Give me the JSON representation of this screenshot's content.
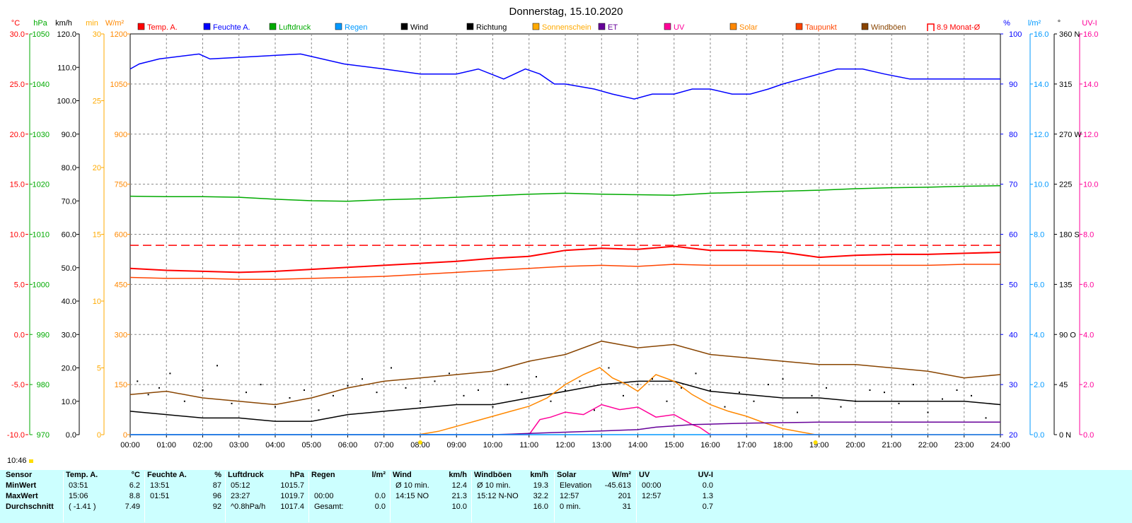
{
  "title": "Donnerstag, 15.10.2020",
  "current_time": "10:46",
  "legend": [
    {
      "label": "Temp. A.",
      "color": "#ff0000",
      "type": "box"
    },
    {
      "label": "Feuchte A.",
      "color": "#0000ff",
      "type": "box"
    },
    {
      "label": "Luftdruck",
      "color": "#00aa00",
      "type": "box"
    },
    {
      "label": "Regen",
      "color": "#0099ff",
      "type": "box"
    },
    {
      "label": "Wind",
      "color": "#000000",
      "type": "box"
    },
    {
      "label": "Richtung",
      "color": "#000000",
      "type": "box"
    },
    {
      "label": "Sonnenschein",
      "color": "#ffaa00",
      "type": "box"
    },
    {
      "label": "ET",
      "color": "#660099",
      "type": "box"
    },
    {
      "label": "UV",
      "color": "#ff0099",
      "type": "box"
    },
    {
      "label": "Solar",
      "color": "#ff8800",
      "type": "box"
    },
    {
      "label": "Taupunkt",
      "color": "#ff4400",
      "type": "box"
    },
    {
      "label": "Windböen",
      "color": "#884400",
      "type": "box"
    },
    {
      "label": "8.9 Monat-Ø",
      "color": "#ff0000",
      "type": "open"
    }
  ],
  "axes": {
    "temp": {
      "unit": "°C",
      "color": "#ff0000",
      "ticks": [
        "30.0",
        "25.0",
        "20.0",
        "15.0",
        "10.0",
        "5.0",
        "0.0",
        "-5.0",
        "-10.0"
      ]
    },
    "pressure": {
      "unit": "hPa",
      "color": "#00aa00",
      "ticks": [
        "1050",
        "1040",
        "1030",
        "1020",
        "1010",
        "1000",
        "990",
        "980",
        "970"
      ]
    },
    "wind": {
      "unit": "km/h",
      "color": "#000000",
      "ticks": [
        "120.0",
        "110.0",
        "100.0",
        "90.0",
        "80.0",
        "70.0",
        "60.0",
        "50.0",
        "40.0",
        "30.0",
        "20.0",
        "10.0",
        "0.0"
      ]
    },
    "minutes": {
      "unit": "min",
      "color": "#ffaa00",
      "ticks": [
        "30",
        "25",
        "20",
        "15",
        "10",
        "5",
        "0"
      ]
    },
    "solar": {
      "unit": "W/m²",
      "color": "#ff8800",
      "ticks": [
        "1200",
        "1050",
        "900",
        "750",
        "600",
        "450",
        "300",
        "150",
        "0"
      ]
    },
    "humidity": {
      "unit": "%",
      "color": "#0000ff",
      "ticks": [
        "100",
        "90",
        "80",
        "70",
        "60",
        "50",
        "40",
        "30",
        "20"
      ]
    },
    "rain": {
      "unit": "l/m²",
      "color": "#0099ff",
      "ticks": [
        "16.0",
        "14.0",
        "12.0",
        "10.0",
        "8.0",
        "6.0",
        "4.0",
        "2.0",
        "0.0"
      ]
    },
    "direction": {
      "unit": "°",
      "color": "#000000",
      "ticks": [
        "360 N",
        "315",
        "270 W",
        "225",
        "180 S",
        "135",
        "90 O",
        "45",
        "0 N"
      ]
    },
    "uv": {
      "unit": "UV-I",
      "color": "#ff0099",
      "ticks": [
        "16.0",
        "14.0",
        "12.0",
        "10.0",
        "8.0",
        "6.0",
        "4.0",
        "2.0",
        "0.0"
      ]
    },
    "x_ticks": [
      "00:00",
      "01:00",
      "02:00",
      "03:00",
      "04:00",
      "05:00",
      "06:00",
      "07:00",
      "08:00",
      "09:00",
      "10:00",
      "11:00",
      "12:00",
      "13:00",
      "14:00",
      "15:00",
      "16:00",
      "17:00",
      "18:00",
      "19:00",
      "20:00",
      "21:00",
      "22:00",
      "23:00",
      "24:00"
    ]
  },
  "chart_data": {
    "type": "line",
    "x_unit": "hour",
    "series": [
      {
        "name": "Feuchte A.",
        "axis": "humidity",
        "color": "#0000ff",
        "x": [
          0,
          0.25,
          0.8,
          1.9,
          2.2,
          4.7,
          5.9,
          7.0,
          8.0,
          9.0,
          9.6,
          10.3,
          10.9,
          11.3,
          11.7,
          12.0,
          12.8,
          13.3,
          13.9,
          14.4,
          15.0,
          15.5,
          16.0,
          16.6,
          17.1,
          17.6,
          18.0,
          18.5,
          19.0,
          19.5,
          20.2,
          20.8,
          21.5,
          22.5,
          23.5,
          24.0
        ],
        "y": [
          93,
          94,
          95,
          96,
          95,
          96,
          94,
          93,
          92,
          92,
          93,
          91,
          93,
          92,
          90,
          90,
          89,
          88,
          87,
          88,
          88,
          89,
          89,
          88,
          88,
          89,
          90,
          91,
          92,
          93,
          93,
          92,
          91,
          91,
          91,
          91
        ]
      },
      {
        "name": "Luftdruck",
        "axis": "pressure",
        "color": "#00aa00",
        "x": [
          0,
          1,
          2,
          3,
          4,
          5,
          6,
          7,
          8,
          9,
          10,
          11,
          12,
          13,
          14,
          15,
          16,
          17,
          18,
          19,
          20,
          21,
          22,
          23,
          24
        ],
        "y": [
          1017.6,
          1017.5,
          1017.5,
          1017.4,
          1017.0,
          1016.7,
          1016.6,
          1016.9,
          1017.1,
          1017.4,
          1017.7,
          1018.0,
          1018.2,
          1018.0,
          1017.9,
          1017.8,
          1018.2,
          1018.4,
          1018.6,
          1018.8,
          1019.1,
          1019.3,
          1019.4,
          1019.6,
          1019.7
        ]
      },
      {
        "name": "Temp. A.",
        "axis": "temp",
        "color": "#ff0000",
        "x": [
          0,
          1,
          2,
          3,
          4,
          5,
          6,
          7,
          8,
          9,
          10,
          11,
          12,
          13,
          14,
          15,
          16,
          17,
          18,
          19,
          20,
          21,
          22,
          23,
          24
        ],
        "y": [
          6.6,
          6.4,
          6.3,
          6.2,
          6.3,
          6.5,
          6.7,
          6.9,
          7.1,
          7.3,
          7.6,
          7.8,
          8.4,
          8.6,
          8.5,
          8.8,
          8.4,
          8.4,
          8.2,
          7.7,
          7.9,
          8.0,
          8.0,
          8.1,
          8.2
        ]
      },
      {
        "name": "Taupunkt",
        "axis": "temp",
        "color": "#ff4400",
        "x": [
          0,
          1,
          2,
          3,
          4,
          5,
          6,
          7,
          8,
          9,
          10,
          11,
          12,
          13,
          14,
          15,
          16,
          17,
          18,
          19,
          20,
          21,
          22,
          23,
          24
        ],
        "y": [
          5.7,
          5.6,
          5.6,
          5.5,
          5.5,
          5.6,
          5.7,
          5.8,
          6.0,
          6.2,
          6.4,
          6.6,
          6.8,
          6.9,
          6.8,
          7.0,
          6.9,
          6.9,
          6.9,
          6.9,
          6.9,
          6.9,
          6.9,
          7.0,
          7.0
        ]
      },
      {
        "name": "8.9 Monat-Ø",
        "axis": "temp",
        "color": "#ff0000",
        "dashed": true,
        "x": [
          0,
          24
        ],
        "y": [
          8.9,
          8.9
        ]
      },
      {
        "name": "Windböen",
        "axis": "wind",
        "color": "#884400",
        "x": [
          0,
          1,
          2,
          3,
          4,
          5,
          6,
          7,
          8,
          9,
          10,
          11,
          12,
          13,
          14,
          15,
          16,
          17,
          18,
          19,
          20,
          21,
          22,
          23,
          24
        ],
        "y": [
          12,
          13,
          11,
          10,
          9,
          11,
          14,
          16,
          17,
          18,
          19,
          22,
          24,
          28,
          26,
          27,
          24,
          23,
          22,
          21,
          21,
          20,
          19,
          17,
          18
        ]
      },
      {
        "name": "Wind",
        "axis": "wind",
        "color": "#000000",
        "x": [
          0,
          1,
          2,
          3,
          4,
          5,
          6,
          7,
          8,
          9,
          10,
          11,
          12,
          13,
          14,
          15,
          16,
          17,
          18,
          19,
          20,
          21,
          22,
          23,
          24
        ],
        "y": [
          7,
          6,
          5,
          5,
          4,
          4,
          6,
          7,
          8,
          9,
          9,
          11,
          13,
          15,
          16,
          16,
          13,
          12,
          11,
          11,
          10,
          10,
          10,
          10,
          9
        ]
      },
      {
        "name": "Solar",
        "axis": "solar",
        "color": "#ff8800",
        "x": [
          0,
          7.95,
          8.5,
          9,
          9.5,
          10,
          10.5,
          11,
          11.5,
          12,
          12.5,
          12.95,
          13.3,
          13.7,
          14,
          14.5,
          15,
          15.5,
          16,
          16.5,
          17,
          17.5,
          18,
          18.5,
          18.9,
          24
        ],
        "y": [
          0,
          0,
          10,
          25,
          40,
          55,
          70,
          85,
          110,
          150,
          180,
          201,
          170,
          150,
          130,
          180,
          160,
          120,
          90,
          70,
          55,
          35,
          18,
          8,
          0,
          0
        ]
      },
      {
        "name": "UV",
        "axis": "uv",
        "color": "#ff0099",
        "x": [
          0,
          11,
          11.3,
          11.6,
          12,
          12.5,
          13,
          13.5,
          14,
          14.5,
          15,
          15.5,
          15.7,
          16,
          24
        ],
        "y": [
          0,
          0,
          0.6,
          0.7,
          0.9,
          0.8,
          1.2,
          1.0,
          1.1,
          0.7,
          0.8,
          0.4,
          0.3,
          0,
          0
        ]
      },
      {
        "name": "ET",
        "axis": "uv",
        "color": "#660099",
        "x": [
          0,
          10,
          10.5,
          11,
          12,
          13,
          14,
          14.5,
          15,
          15.5,
          16,
          16.5,
          17,
          18,
          19,
          20,
          21,
          22,
          23,
          24
        ],
        "y": [
          0,
          0,
          0.02,
          0.05,
          0.1,
          0.15,
          0.2,
          0.3,
          0.35,
          0.4,
          0.42,
          0.44,
          0.46,
          0.48,
          0.5,
          0.5,
          0.5,
          0.5,
          0.5,
          0.5
        ]
      },
      {
        "name": "Regen",
        "axis": "rain",
        "color": "#0099ff",
        "x": [
          0,
          24
        ],
        "y": [
          0,
          0
        ]
      }
    ],
    "direction_points": {
      "axis": "direction",
      "x": [
        0.2,
        0.5,
        0.8,
        1.1,
        1.5,
        2.0,
        2.4,
        2.8,
        3.2,
        3.6,
        4.0,
        4.4,
        4.8,
        5.2,
        5.6,
        6.0,
        6.4,
        6.8,
        7.2,
        7.6,
        8.0,
        8.4,
        8.8,
        9.2,
        9.6,
        10.0,
        10.4,
        10.8,
        11.2,
        11.6,
        12.0,
        12.4,
        12.8,
        13.2,
        13.6,
        14.0,
        14.4,
        14.8,
        15.2,
        15.6,
        16.0,
        16.4,
        16.8,
        17.2,
        17.6,
        18.0,
        18.4,
        18.8,
        19.2,
        19.6,
        20.0,
        20.4,
        20.8,
        21.2,
        21.6,
        22.0,
        22.4,
        22.8,
        23.2,
        23.6
      ],
      "y": [
        48,
        36,
        42,
        55,
        30,
        40,
        62,
        28,
        38,
        45,
        25,
        33,
        40,
        22,
        35,
        44,
        50,
        38,
        60,
        42,
        30,
        48,
        55,
        35,
        40,
        25,
        45,
        38,
        52,
        30,
        40,
        48,
        22,
        60,
        35,
        45,
        50,
        30,
        42,
        55,
        40,
        25,
        38,
        30,
        45,
        50,
        20,
        35,
        42,
        25,
        30,
        40,
        38,
        28,
        45,
        20,
        32,
        40,
        35,
        15
      ]
    },
    "ylim": {
      "temp": [
        -10,
        30
      ],
      "pressure": [
        970,
        1050
      ],
      "wind": [
        0,
        120
      ],
      "solar": [
        0,
        1200
      ],
      "humidity": [
        20,
        100
      ],
      "rain": [
        0,
        16
      ],
      "direction": [
        0,
        360
      ],
      "uv": [
        0,
        16
      ]
    },
    "xlim": [
      0,
      24
    ],
    "grid": true
  },
  "table": {
    "columns": [
      {
        "header": "Sensor",
        "unit": ""
      },
      {
        "header": "Temp. A.",
        "unit": "°C"
      },
      {
        "header": "Feuchte A.",
        "unit": "%"
      },
      {
        "header": "Luftdruck",
        "unit": "hPa"
      },
      {
        "header": "Regen",
        "unit": "l/m²"
      },
      {
        "header": "Wind",
        "unit": "km/h"
      },
      {
        "header": "Windböen",
        "unit": "km/h"
      },
      {
        "header": "Solar",
        "unit": "W/m²"
      },
      {
        "header": "UV",
        "unit": "UV-I"
      }
    ],
    "rows": [
      {
        "label": "MinWert",
        "cells": [
          [
            "03:51",
            "6.2"
          ],
          [
            "13:51",
            "87"
          ],
          [
            "05:12",
            "1015.7"
          ],
          [
            "",
            ""
          ],
          [
            "Ø 10 min.",
            "12.4"
          ],
          [
            "Ø 10 min.",
            "19.3"
          ],
          [
            "Elevation",
            "-45.613"
          ],
          [
            "00:00",
            "0.0"
          ]
        ]
      },
      {
        "label": "MaxWert",
        "cells": [
          [
            "15:06",
            "8.8"
          ],
          [
            "01:51",
            "96"
          ],
          [
            "23:27",
            "1019.7"
          ],
          [
            "00:00",
            "0.0"
          ],
          [
            "14:15 NO",
            "21.3"
          ],
          [
            "15:12 N-NO",
            "32.2"
          ],
          [
            "12:57",
            "201"
          ],
          [
            "12:57",
            "1.3"
          ]
        ]
      },
      {
        "label": "Durchschnitt",
        "cells": [
          [
            "( -1.41 )",
            "7.49"
          ],
          [
            "",
            "92"
          ],
          [
            "^0.8hPa/h",
            "1017.4"
          ],
          [
            "Gesamt:",
            "0.0"
          ],
          [
            "",
            "10.0"
          ],
          [
            "",
            "16.0"
          ],
          [
            "0 min.",
            "31"
          ],
          [
            "",
            "0.7"
          ]
        ]
      }
    ]
  }
}
